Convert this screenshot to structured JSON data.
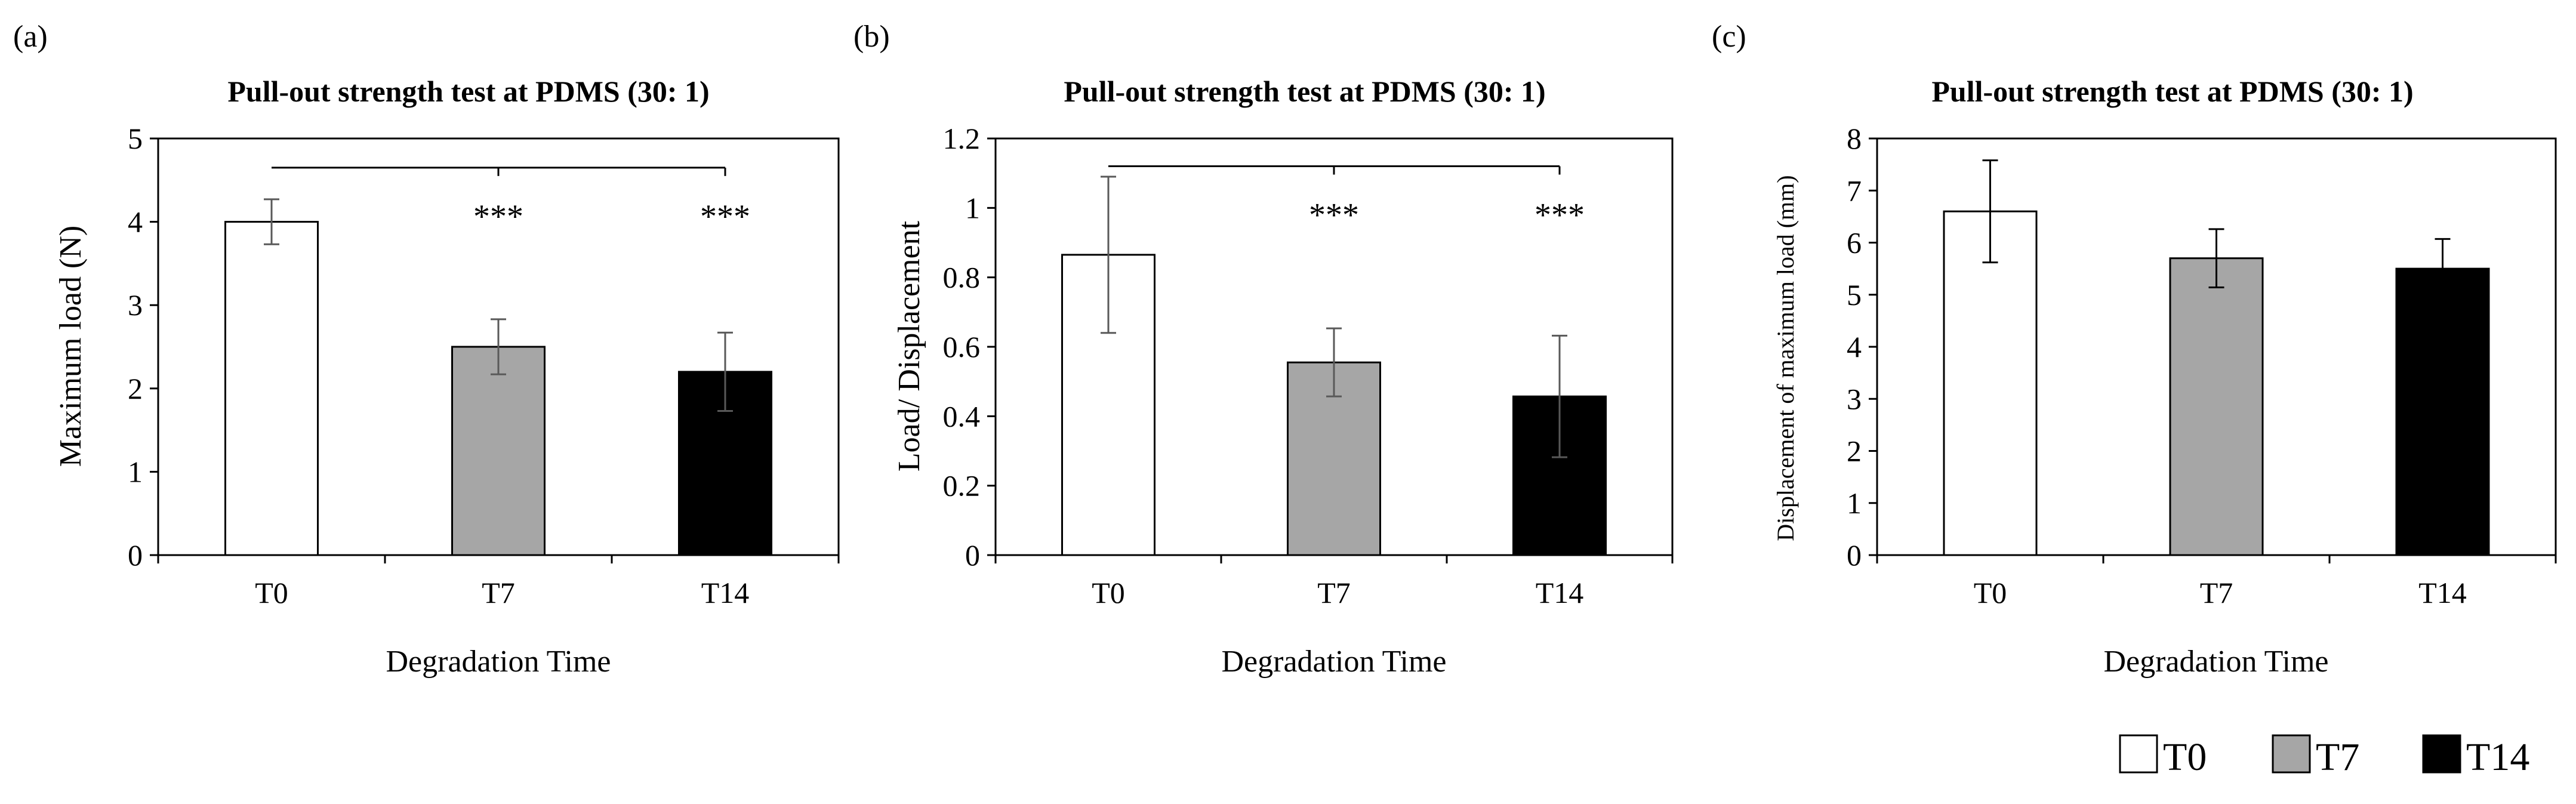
{
  "chart_data": [
    {
      "panel_label": "(a)",
      "type": "bar",
      "title": "Pull-out strength test at PDMS (30: 1)",
      "xlabel": "Degradation Time",
      "ylabel": "Maximum load (N)",
      "categories": [
        "T0",
        "T7",
        "T14"
      ],
      "values": [
        4.0,
        2.5,
        2.2
      ],
      "errors": [
        0.27,
        0.33,
        0.47
      ],
      "bar_colors": [
        "#ffffff",
        "#a6a6a6",
        "#000000"
      ],
      "ylim": [
        0,
        5
      ],
      "yticks": [
        0,
        1,
        2,
        3,
        4,
        5
      ],
      "ytick_labels": [
        "0",
        "1",
        "2",
        "3",
        "4",
        "5"
      ],
      "significance": {
        "bracket_y": 4.65,
        "from": "T0",
        "to": "T14",
        "ticks_at": [
          "T7",
          "T14"
        ],
        "marks": [
          {
            "category": "T7",
            "label": "***"
          },
          {
            "category": "T14",
            "label": "***"
          }
        ]
      }
    },
    {
      "panel_label": "(b)",
      "type": "bar",
      "title": "Pull-out strength test at PDMS (30: 1)",
      "xlabel": "Degradation Time",
      "ylabel": "Load/ Displacement",
      "categories": [
        "T0",
        "T7",
        "T14"
      ],
      "values": [
        0.865,
        0.555,
        0.457
      ],
      "errors": [
        0.225,
        0.098,
        0.175
      ],
      "bar_colors": [
        "#ffffff",
        "#a6a6a6",
        "#000000"
      ],
      "ylim": [
        0,
        1.2
      ],
      "yticks": [
        0,
        0.2,
        0.4,
        0.6,
        0.8,
        1.0,
        1.2
      ],
      "ytick_labels": [
        "0",
        "0.2",
        "0.4",
        "0.6",
        "0.8",
        "1",
        "1.2"
      ],
      "significance": {
        "bracket_y": 1.12,
        "from": "T0",
        "to": "T14",
        "ticks_at": [
          "T7",
          "T14"
        ],
        "marks": [
          {
            "category": "T7",
            "label": "***"
          },
          {
            "category": "T14",
            "label": "***"
          }
        ]
      }
    },
    {
      "panel_label": "(c)",
      "type": "bar",
      "title": "Pull-out strength test at PDMS (30: 1)",
      "xlabel": "Degradation Time",
      "ylabel": "Displacement of maximum load (mm)",
      "categories": [
        "T0",
        "T7",
        "T14"
      ],
      "values": [
        6.6,
        5.7,
        5.5
      ],
      "errors": [
        0.98,
        0.56,
        0.57
      ],
      "bar_colors": [
        "#ffffff",
        "#a6a6a6",
        "#000000"
      ],
      "ylim": [
        0,
        8
      ],
      "yticks": [
        0,
        1,
        2,
        3,
        4,
        5,
        6,
        7,
        8
      ],
      "ytick_labels": [
        "0",
        "1",
        "2",
        "3",
        "4",
        "5",
        "6",
        "7",
        "8"
      ]
    }
  ],
  "legend": {
    "placement": "bottom-right",
    "entries": [
      {
        "label": "T0",
        "color": "#ffffff"
      },
      {
        "label": "T7",
        "color": "#a6a6a6"
      },
      {
        "label": "T14",
        "color": "#000000"
      }
    ]
  }
}
